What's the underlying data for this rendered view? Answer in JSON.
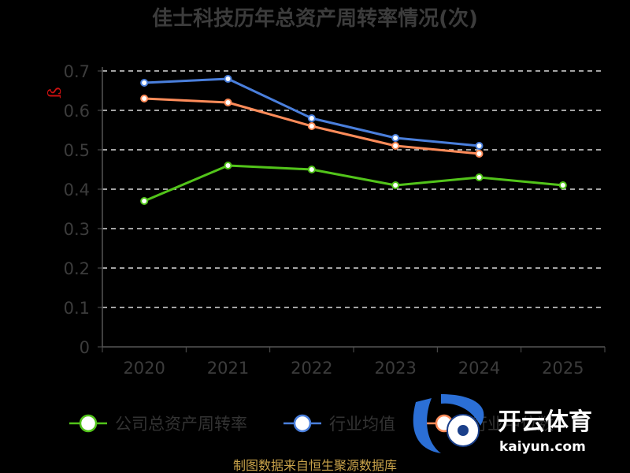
{
  "chart_data": {
    "type": "line",
    "title": "佳士科技历年总资产周转率情况(次)",
    "categories": [
      "2020",
      "2021",
      "2022",
      "2023",
      "2024",
      "2025"
    ],
    "ylim": [
      0,
      0.7
    ],
    "yticks": [
      "0",
      "0.1",
      "0.2",
      "0.3",
      "0.4",
      "0.5",
      "0.6",
      "0.7"
    ],
    "grid": "horizontal-dashed",
    "legend_position": "bottom",
    "series": [
      {
        "name": "公司总资产周转率",
        "color": "#52c41a",
        "values": [
          0.37,
          0.46,
          0.45,
          0.41,
          0.43,
          0.41
        ]
      },
      {
        "name": "行业均值",
        "color": "#4a7fdc",
        "values": [
          0.67,
          0.68,
          0.58,
          0.53,
          0.51,
          null
        ]
      },
      {
        "name": "行业中位数",
        "color": "#ff8c5a",
        "values": [
          0.63,
          0.62,
          0.56,
          0.51,
          0.49,
          null
        ]
      }
    ]
  },
  "source": "制图数据来自恒生聚源数据库",
  "watermark": {
    "brand_cn": "开云体育",
    "brand_en": "kaiyun.com",
    "logo_letter": "K"
  }
}
